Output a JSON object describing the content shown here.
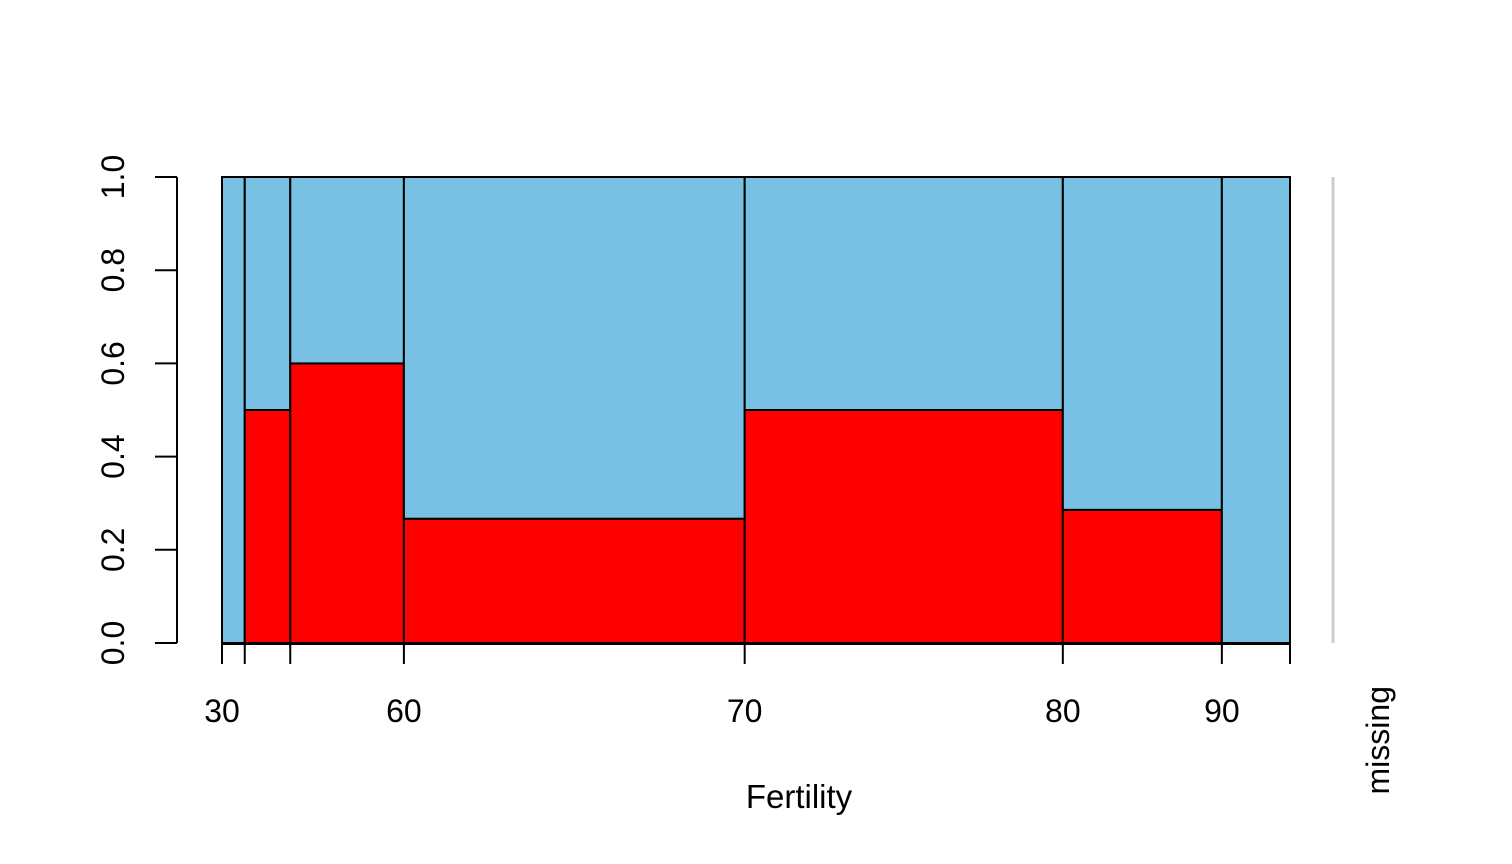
{
  "chart_data": {
    "type": "spineplot",
    "xlabel": "Fertility",
    "ylabel": "",
    "ylim": [
      0,
      1
    ],
    "y_ticks": [
      "0.0",
      "0.2",
      "0.4",
      "0.6",
      "0.8",
      "1.0"
    ],
    "x_breaks": [
      30,
      40,
      50,
      60,
      70,
      80,
      90,
      100
    ],
    "x_tick_labels": [
      "30",
      "",
      "",
      "60",
      "70",
      "80",
      "90",
      ""
    ],
    "bins": [
      {
        "from": 30,
        "to": 40,
        "share": 0.0213,
        "lower_fraction": 0.0
      },
      {
        "from": 40,
        "to": 50,
        "share": 0.0426,
        "lower_fraction": 0.5
      },
      {
        "from": 50,
        "to": 60,
        "share": 0.1064,
        "lower_fraction": 0.6
      },
      {
        "from": 60,
        "to": 70,
        "share": 0.3191,
        "lower_fraction": 0.2667
      },
      {
        "from": 70,
        "to": 80,
        "share": 0.2979,
        "lower_fraction": 0.5
      },
      {
        "from": 80,
        "to": 90,
        "share": 0.1489,
        "lower_fraction": 0.2857
      },
      {
        "from": 90,
        "to": 100,
        "share": 0.0638,
        "lower_fraction": 0.0
      }
    ],
    "missing_label": "missing",
    "colors": {
      "lower": "#ff0000",
      "upper": "#78c1e5",
      "missing_line": "#cccccc",
      "stroke": "#000000"
    }
  }
}
